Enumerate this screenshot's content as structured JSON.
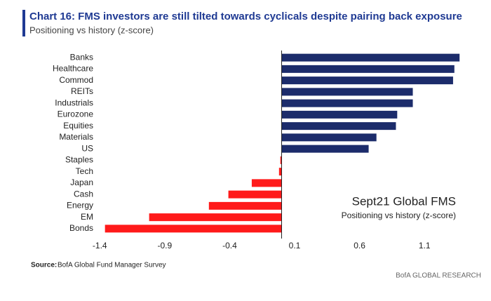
{
  "chart_data": {
    "type": "hbar",
    "title": "Chart 16: FMS investors are still tilted towards cyclicals despite pairing back exposure",
    "subtitle": "Positioning vs history (z-score)",
    "categories": [
      "Banks",
      "Healthcare",
      "Commod",
      "REITs",
      "Industrials",
      "Eurozone",
      "Equities",
      "Materials",
      "US",
      "Staples",
      "Tech",
      "Japan",
      "Cash",
      "Energy",
      "EM",
      "Bonds"
    ],
    "values": [
      1.37,
      1.33,
      1.32,
      1.01,
      1.01,
      0.89,
      0.88,
      0.73,
      0.67,
      -0.01,
      -0.02,
      -0.23,
      -0.41,
      -0.56,
      -1.02,
      -1.36
    ],
    "positive_color": "#1c2c6b",
    "negative_color": "#ff1a1a",
    "xlim": [
      -1.45,
      1.45
    ],
    "xticks": [
      -1.4,
      -0.9,
      -0.4,
      0.1,
      0.6,
      1.1
    ],
    "annotation_title": "Sept21 Global FMS",
    "annotation_subtitle": "Positioning vs history (z-score)",
    "source_label": "Source:",
    "source": "BofA Global Fund Manager Survey",
    "footer": "BofA GLOBAL RESEARCH"
  }
}
